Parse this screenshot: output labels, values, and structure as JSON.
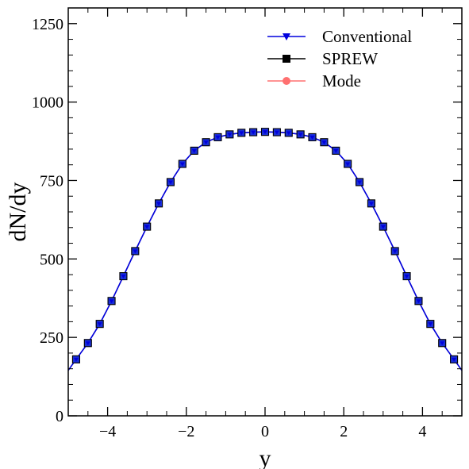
{
  "chart_data": {
    "type": "line",
    "xlabel": "y",
    "ylabel": "dN/dy",
    "xlim": [
      -5,
      5
    ],
    "ylim": [
      0,
      1300
    ],
    "xticks_major": [
      -4,
      -2,
      0,
      2,
      4
    ],
    "xtick_labels": [
      "−4",
      "−2",
      "0",
      "2",
      "4"
    ],
    "yticks_major": [
      0,
      250,
      500,
      750,
      1000,
      1250
    ],
    "ytick_labels": [
      "0",
      "250",
      "500",
      "750",
      "1000",
      "1250"
    ],
    "grid": false,
    "legend_position": "top-right",
    "x": [
      -4.8,
      -4.5,
      -4.2,
      -3.9,
      -3.6,
      -3.3,
      -3.0,
      -2.7,
      -2.4,
      -2.1,
      -1.8,
      -1.5,
      -1.2,
      -0.9,
      -0.6,
      -0.3,
      0.0,
      0.3,
      0.6,
      0.9,
      1.2,
      1.5,
      1.8,
      2.1,
      2.4,
      2.7,
      3.0,
      3.3,
      3.6,
      3.9,
      4.2,
      4.5,
      4.8
    ],
    "series": [
      {
        "name": "Conventional",
        "color": "#0000dd",
        "marker": "triangle-down",
        "values": [
          180,
          232,
          293,
          366,
          445,
          525,
          603,
          677,
          745,
          803,
          845,
          872,
          888,
          897,
          902,
          904,
          905,
          904,
          902,
          897,
          888,
          872,
          845,
          803,
          745,
          677,
          603,
          525,
          445,
          366,
          293,
          232,
          180
        ]
      },
      {
        "name": "SPREW",
        "color": "#000000",
        "marker": "square",
        "values": [
          180,
          232,
          293,
          366,
          445,
          525,
          603,
          677,
          745,
          803,
          845,
          872,
          888,
          897,
          902,
          904,
          905,
          904,
          902,
          897,
          888,
          872,
          845,
          803,
          745,
          677,
          603,
          525,
          445,
          366,
          293,
          232,
          180
        ]
      },
      {
        "name": "Mode",
        "color": "#ff7070",
        "marker": "circle",
        "values": [
          180,
          232,
          293,
          366,
          445,
          525,
          603,
          677,
          745,
          803,
          845,
          872,
          888,
          897,
          902,
          904,
          905,
          904,
          902,
          897,
          888,
          872,
          845,
          803,
          745,
          677,
          603,
          525,
          445,
          366,
          293,
          232,
          180
        ]
      }
    ],
    "curve_endpoints": {
      "x": [
        -5.0,
        5.0
      ],
      "values": [
        145,
        145
      ]
    },
    "marker_fill_color": "#1a2fd6"
  }
}
